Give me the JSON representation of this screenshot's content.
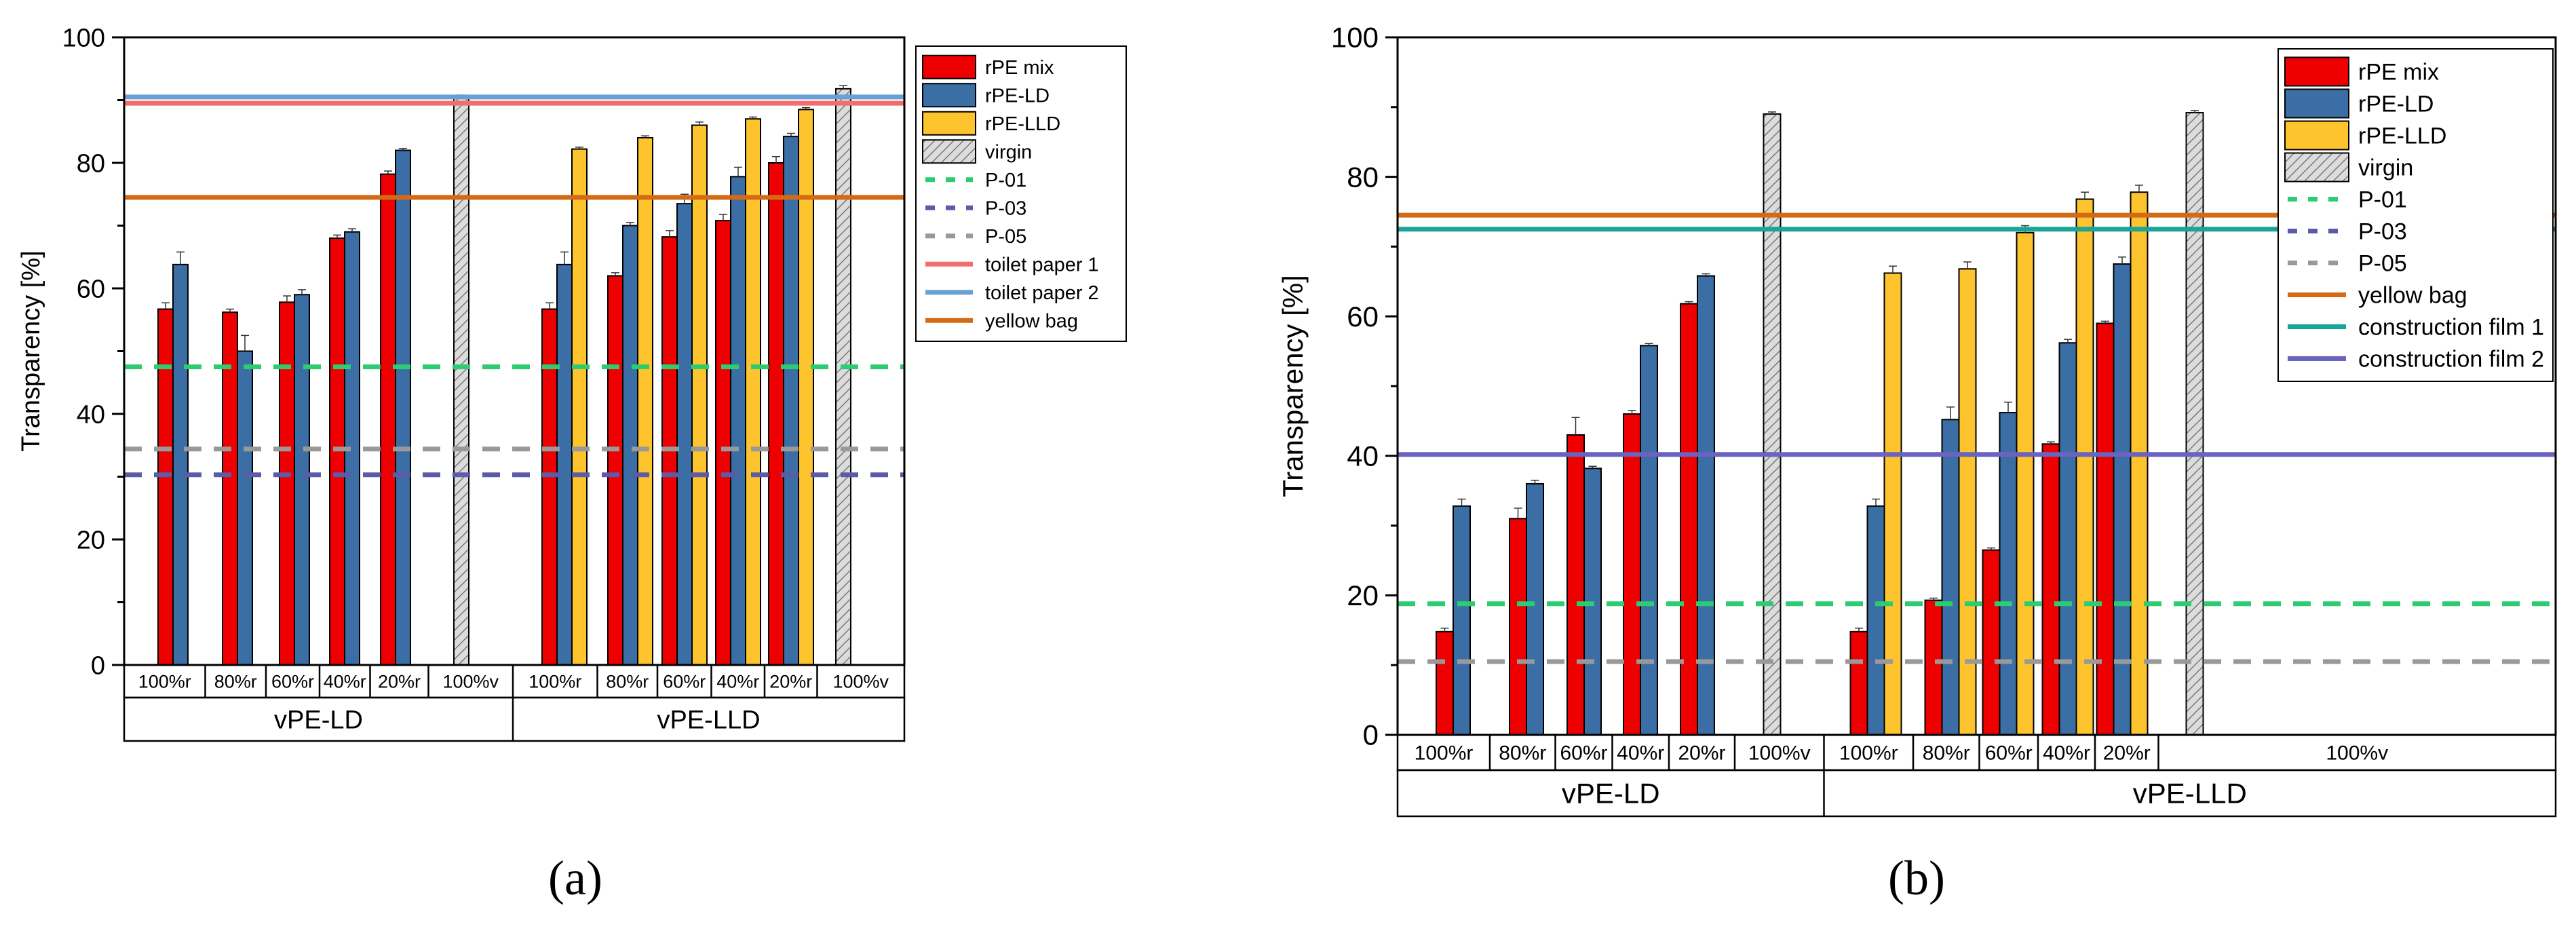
{
  "colors": {
    "rpe_mix": "#ee0000",
    "rpe_ld": "#3a6ea5",
    "rpe_lld": "#fec42e",
    "virgin_fill": "#dcdcdc",
    "p01": "#2ecc71",
    "p03": "#5b5ba8",
    "p05": "#999999",
    "toilet_paper_1": "#f26d6d",
    "toilet_paper_2": "#6a9fd4",
    "yellow_bag": "#d46a15",
    "construction_film_1": "#1aa59c",
    "construction_film_2": "#6b63c0"
  },
  "chart_data": [
    {
      "id": "a",
      "type": "bar",
      "caption": "(a)",
      "ylabel": "Transparency [%]",
      "ylim": [
        0,
        100
      ],
      "yticks": [
        "0",
        "20",
        "40",
        "60",
        "80",
        "100"
      ],
      "groups": [
        {
          "label": "vPE-LD",
          "categories": [
            "100%r",
            "80%r",
            "60%r",
            "40%r",
            "20%r",
            "100%v"
          ]
        },
        {
          "label": "vPE-LLD",
          "categories": [
            "100%r",
            "80%r",
            "60%r",
            "40%r",
            "20%r",
            "100%v"
          ]
        }
      ],
      "series": [
        {
          "name": "rPE mix",
          "key": "rpe_mix",
          "values": [
            [
              56.7,
              56.2,
              57.8,
              68,
              78.2,
              null
            ],
            [
              56.7,
              62,
              68.2,
              70.8,
              80,
              null
            ]
          ],
          "errors": [
            [
              1,
              0.5,
              1,
              0.5,
              0.5,
              null
            ],
            [
              1,
              0.5,
              1,
              1,
              1,
              null
            ]
          ]
        },
        {
          "name": "rPE-LD",
          "key": "rpe_ld",
          "values": [
            [
              63.8,
              50,
              59,
              69,
              82,
              null
            ],
            [
              63.8,
              70,
              73.5,
              77.8,
              84.2,
              null
            ]
          ],
          "errors": [
            [
              2,
              2.5,
              0.8,
              0.5,
              0.3,
              null
            ],
            [
              2,
              0.5,
              1.5,
              1.5,
              0.5,
              null
            ]
          ]
        },
        {
          "name": "rPE-LLD",
          "key": "rpe_lld",
          "values": [
            [
              null,
              null,
              null,
              null,
              null,
              null
            ],
            [
              82.2,
              84,
              86,
              87,
              88.5,
              null
            ]
          ],
          "errors": [
            [
              null,
              null,
              null,
              null,
              null,
              null
            ],
            [
              0.3,
              0.3,
              0.5,
              0.3,
              0.3,
              null
            ]
          ]
        },
        {
          "name": "virgin",
          "key": "virgin",
          "values": [
            [
              null,
              null,
              null,
              null,
              null,
              90.5
            ],
            [
              null,
              null,
              null,
              null,
              null,
              91.8
            ]
          ],
          "errors": [
            [
              null,
              null,
              null,
              null,
              null,
              0.3
            ],
            [
              null,
              null,
              null,
              null,
              null,
              0.5
            ]
          ]
        }
      ],
      "reference_lines": [
        {
          "name": "P-01",
          "value": 47.5,
          "style": "dashed",
          "key": "p01"
        },
        {
          "name": "P-03",
          "value": 30.3,
          "style": "dashed",
          "key": "p03"
        },
        {
          "name": "P-05",
          "value": 34.4,
          "style": "dashed",
          "key": "p05"
        },
        {
          "name": "toilet paper 1",
          "value": 89.5,
          "style": "solid",
          "key": "toilet_paper_1"
        },
        {
          "name": "toilet paper 2",
          "value": 90.5,
          "style": "solid",
          "key": "toilet_paper_2"
        },
        {
          "name": "yellow bag",
          "value": 74.5,
          "style": "solid",
          "key": "yellow_bag"
        }
      ],
      "legend_position": "top-right, outside plot"
    },
    {
      "id": "b",
      "type": "bar",
      "caption": "(b)",
      "ylabel": "Transparency [%]",
      "ylim": [
        0,
        100
      ],
      "yticks": [
        "0",
        "20",
        "40",
        "60",
        "80",
        "100"
      ],
      "groups": [
        {
          "label": "vPE-LD",
          "categories": [
            "100%r",
            "80%r",
            "60%r",
            "40%r",
            "20%r",
            "100%v"
          ]
        },
        {
          "label": "vPE-LLD",
          "categories": [
            "100%r",
            "80%r",
            "60%r",
            "40%r",
            "20%r",
            "100%v"
          ]
        }
      ],
      "series": [
        {
          "name": "rPE mix",
          "key": "rpe_mix",
          "values": [
            [
              14.8,
              31,
              43,
              46,
              61.8,
              null
            ],
            [
              14.8,
              19.3,
              26.5,
              41.7,
              59,
              null
            ]
          ],
          "errors": [
            [
              0.5,
              1.5,
              2.5,
              0.5,
              0.3,
              null
            ],
            [
              0.5,
              0.3,
              0.3,
              0.3,
              0.3,
              null
            ]
          ]
        },
        {
          "name": "rPE-LD",
          "key": "rpe_ld",
          "values": [
            [
              32.8,
              36,
              38.2,
              55.8,
              65.8,
              null
            ],
            [
              32.8,
              45.2,
              46.2,
              56.2,
              67.5,
              null
            ]
          ],
          "errors": [
            [
              1,
              0.5,
              0.3,
              0.3,
              0.3,
              null
            ],
            [
              1,
              1.8,
              1.5,
              0.5,
              1,
              null
            ]
          ]
        },
        {
          "name": "rPE-LLD",
          "key": "rpe_lld",
          "values": [
            [
              null,
              null,
              null,
              null,
              null,
              null
            ],
            [
              66.2,
              66.8,
              72,
              76.8,
              77.8,
              null
            ]
          ],
          "errors": [
            [
              null,
              null,
              null,
              null,
              null,
              null
            ],
            [
              1,
              1,
              1,
              1,
              1,
              null
            ]
          ]
        },
        {
          "name": "virgin",
          "key": "virgin",
          "values": [
            [
              null,
              null,
              null,
              null,
              null,
              89
            ],
            [
              null,
              null,
              null,
              null,
              null,
              89.2
            ]
          ],
          "errors": [
            [
              null,
              null,
              null,
              null,
              null,
              0.3
            ],
            [
              null,
              null,
              null,
              null,
              null,
              0.3
            ]
          ]
        }
      ],
      "reference_lines": [
        {
          "name": "P-01",
          "value": 18.8,
          "style": "dashed",
          "key": "p01"
        },
        {
          "name": "P-03",
          "value": 10.5,
          "style": "dashed",
          "key": "p03"
        },
        {
          "name": "P-05",
          "value": 10.5,
          "style": "dashed",
          "key": "p05"
        },
        {
          "name": "yellow bag",
          "value": 74.5,
          "style": "solid",
          "key": "yellow_bag"
        },
        {
          "name": "construction film 1",
          "value": 72.5,
          "style": "solid",
          "key": "construction_film_1"
        },
        {
          "name": "construction film 2",
          "value": 40.2,
          "style": "solid",
          "key": "construction_film_2"
        }
      ],
      "legend_position": "top-right, inside plot"
    }
  ]
}
